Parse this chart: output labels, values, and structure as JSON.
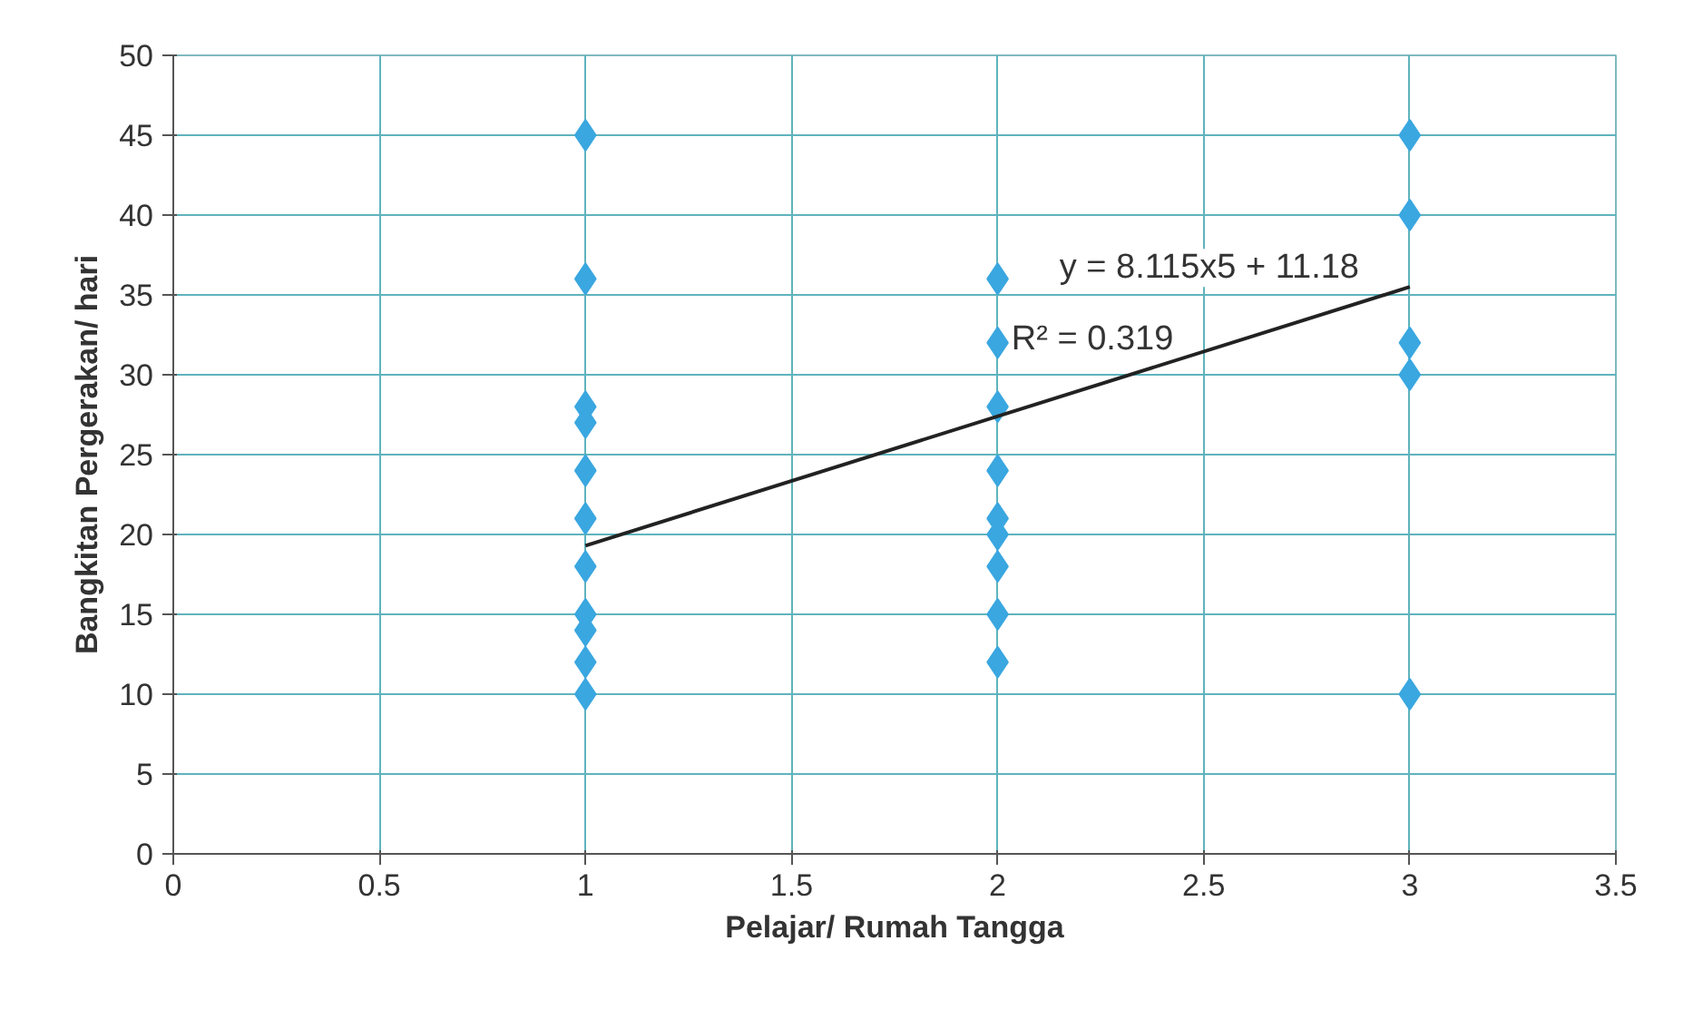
{
  "chart_data": {
    "type": "scatter",
    "xlabel": "Pelajar/ Rumah Tangga",
    "ylabel": "Bangkitan Pergerakan/ hari",
    "xlim": [
      0,
      3.5
    ],
    "xticks": [
      0,
      0.5,
      1,
      1.5,
      2,
      2.5,
      3,
      3.5
    ],
    "ylim": [
      0,
      50
    ],
    "yticks": [
      0,
      5,
      10,
      15,
      20,
      25,
      30,
      35,
      40,
      45,
      50
    ],
    "grid": true,
    "marker": "diamond",
    "series": [
      {
        "color": "#3aa7e0",
        "x": [
          1,
          1,
          1,
          1,
          1,
          1,
          1,
          1,
          1,
          1,
          1,
          2,
          2,
          2,
          2,
          2,
          2,
          2,
          2,
          2,
          3,
          3,
          3,
          3,
          3
        ],
        "values": [
          45,
          36,
          28,
          27,
          24,
          21,
          18,
          15,
          14,
          12,
          10,
          36,
          32,
          28,
          24,
          21,
          20,
          18,
          15,
          12,
          45,
          40,
          32,
          30,
          10
        ]
      },
      {
        "type": "line",
        "color": "#222222",
        "marker": "none",
        "x": [
          1,
          3
        ],
        "values": [
          19.3,
          35.5
        ]
      }
    ],
    "annotations": [
      "y = 8.115x5 + 11.18",
      "R² = 0.319"
    ]
  }
}
